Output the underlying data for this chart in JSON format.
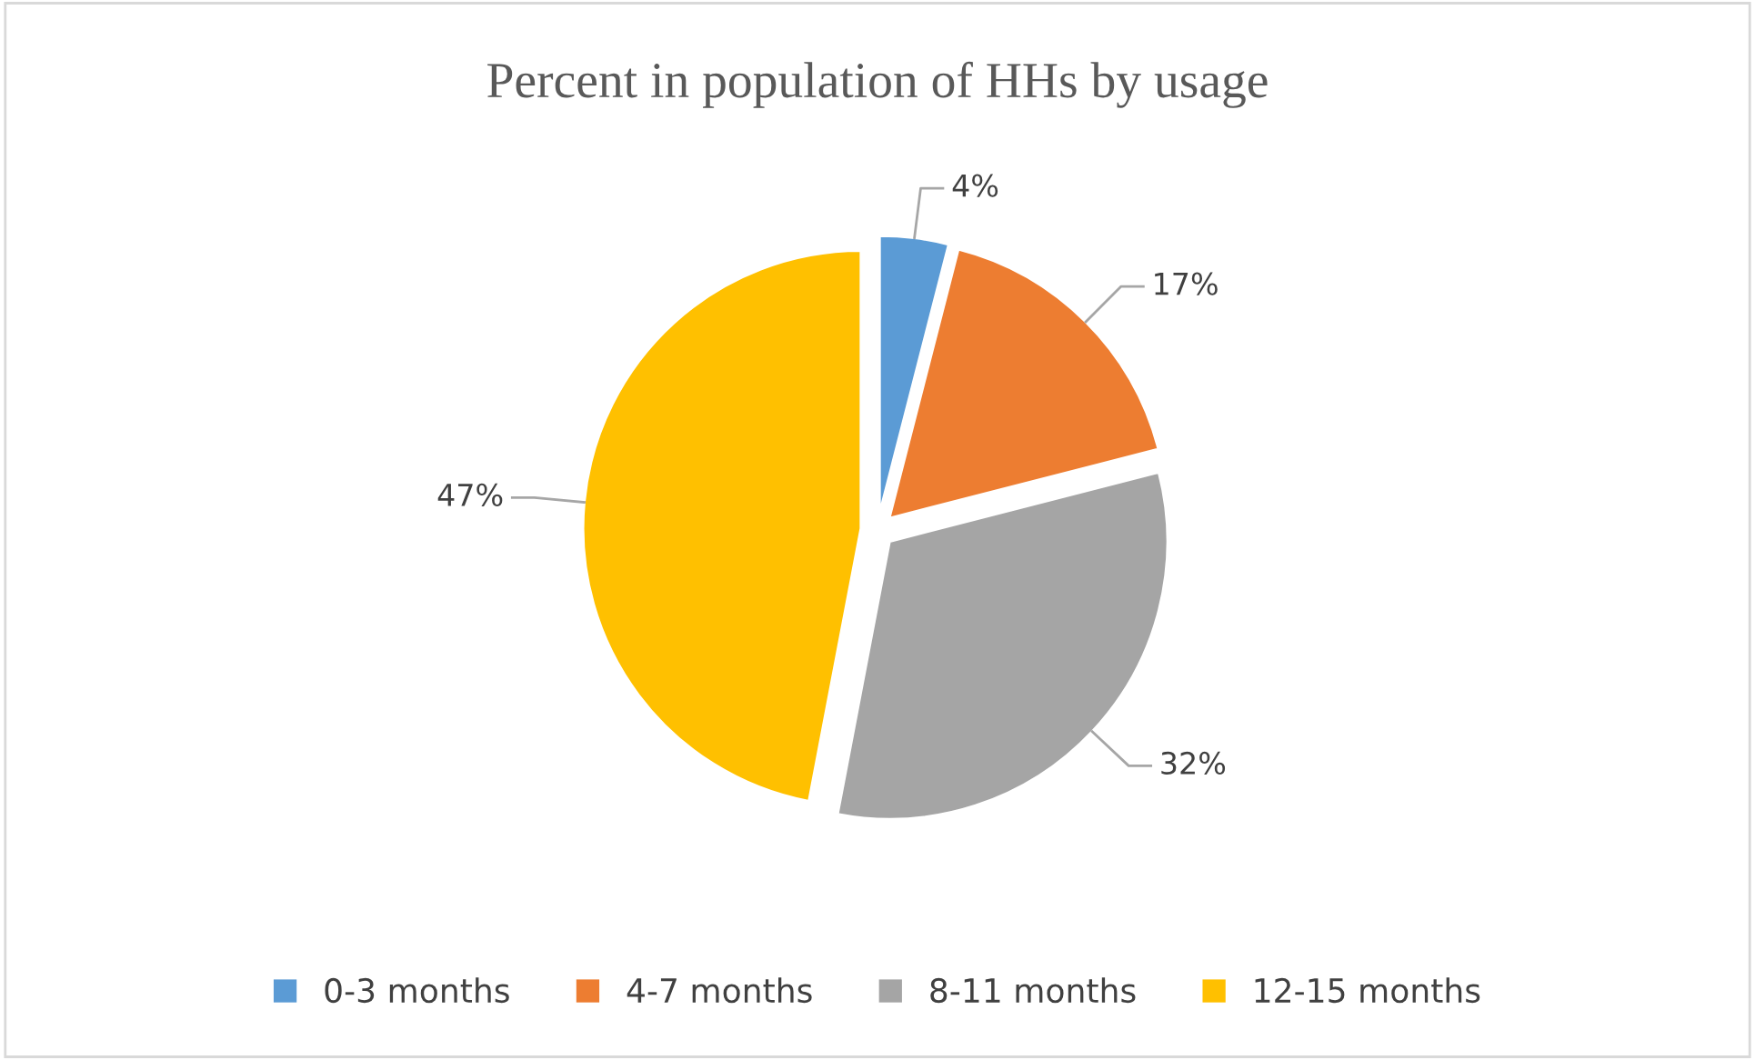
{
  "chart_data": {
    "type": "pie",
    "title": "Percent in population of HHs by usage",
    "categories": [
      "0-3 months",
      "4-7 months",
      "8-11 months",
      "12-15 months"
    ],
    "values": [
      4,
      17,
      32,
      47
    ],
    "colors": [
      "#5b9bd5",
      "#ed7d31",
      "#a5a5a5",
      "#ffc000"
    ],
    "value_labels": [
      "4%",
      "17%",
      "32%",
      "47%"
    ],
    "legend": "bottom"
  }
}
